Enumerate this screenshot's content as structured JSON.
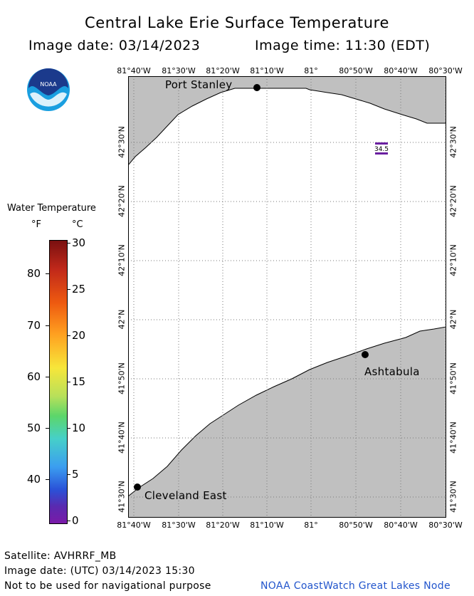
{
  "header": {
    "title": "Central Lake Erie Surface Temperature",
    "image_date": "Image date: 03/14/2023",
    "image_time": "Image time: 11:30 (EDT)"
  },
  "logo": {
    "text": "NOAA",
    "icon": "noaa-logo"
  },
  "map": {
    "lon_ticks": [
      "81°40'W",
      "81°30'W",
      "81°20'W",
      "81°10'W",
      "81°",
      "80°50'W",
      "80°40'W",
      "80°30'W"
    ],
    "lat_ticks": [
      "42°30'N",
      "42°20'N",
      "42°10'N",
      "42°N",
      "41°50'N",
      "41°40'N",
      "41°30'N"
    ],
    "cities": [
      {
        "name": "Port Stanley"
      },
      {
        "name": "Ashtabula"
      },
      {
        "name": "Cleveland East"
      }
    ],
    "temperature_reading": "34.5",
    "colors": {
      "land": "#c0c0c0",
      "water": "#ffffff",
      "grid": "#7a7a7a",
      "reading_bar": "#6a1fa0"
    }
  },
  "colorbar": {
    "title": "Water Temperature",
    "unit_f": "°F",
    "unit_c": "°C",
    "fahrenheit_ticks": [
      "80",
      "70",
      "60",
      "50",
      "40"
    ],
    "celsius_ticks": [
      "30",
      "25",
      "20",
      "15",
      "10",
      "5",
      "0"
    ]
  },
  "footer": {
    "satellite": "Satellite: AVHRRF_MB",
    "image_date_utc": "Image date: (UTC) 03/14/2023  15:30",
    "disclaimer": "Not to be used for navigational purpose",
    "credit": "NOAA CoastWatch Great Lakes Node",
    "credit_color": "#2255cc"
  }
}
